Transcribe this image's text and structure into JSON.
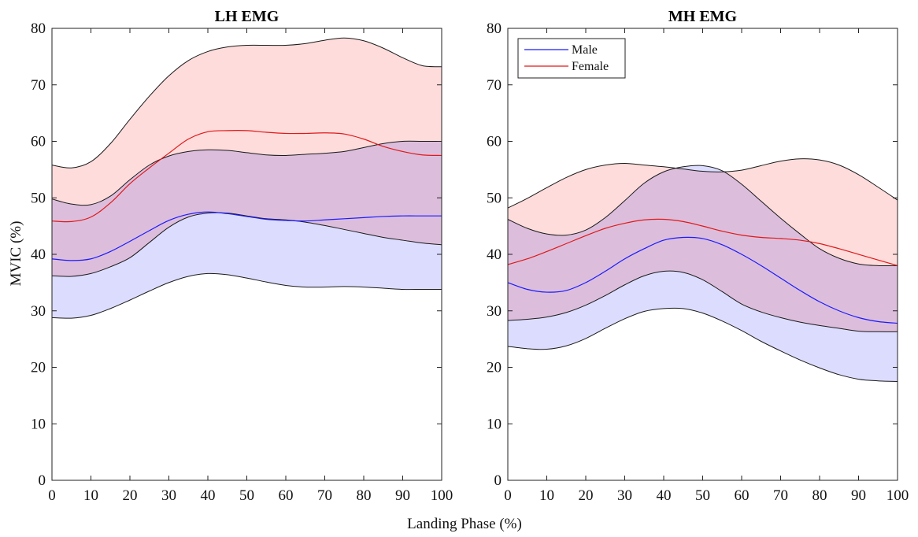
{
  "figure": {
    "xlabel": "Landing Phase (%)",
    "ylabel": "MVIC (%)"
  },
  "chart_data": [
    {
      "type": "area",
      "title": "LH EMG",
      "xlabel": "Landing Phase (%)",
      "ylabel": "MVIC (%)",
      "xlim": [
        0,
        100
      ],
      "ylim": [
        0,
        80
      ],
      "xticks": [
        0,
        10,
        20,
        30,
        40,
        50,
        60,
        70,
        80,
        90,
        100
      ],
      "yticks": [
        0,
        10,
        20,
        30,
        40,
        50,
        60,
        70,
        80
      ],
      "grid": false,
      "legend": null,
      "x": [
        0,
        5,
        10,
        15,
        20,
        25,
        30,
        35,
        40,
        45,
        50,
        55,
        60,
        65,
        70,
        75,
        80,
        85,
        90,
        95,
        100
      ],
      "series": [
        {
          "name": "Male",
          "color": "#1a1aff",
          "fill": "#dcdcff",
          "mean": [
            39.2,
            38.9,
            39.2,
            40.5,
            42.3,
            44.2,
            46.0,
            47.1,
            47.5,
            47.2,
            46.7,
            46.2,
            46.0,
            45.9,
            46.1,
            46.3,
            46.5,
            46.7,
            46.8,
            46.8,
            46.8
          ],
          "upper": [
            49.8,
            48.9,
            48.8,
            50.3,
            53.2,
            55.8,
            57.4,
            58.2,
            58.5,
            58.4,
            58.0,
            57.6,
            57.5,
            57.7,
            57.9,
            58.2,
            58.9,
            59.6,
            60.0,
            60.0,
            60.0
          ],
          "lower": [
            28.8,
            28.7,
            29.2,
            30.4,
            31.9,
            33.5,
            35.0,
            36.1,
            36.6,
            36.4,
            35.8,
            35.1,
            34.5,
            34.2,
            34.2,
            34.3,
            34.2,
            34.0,
            33.8,
            33.8,
            33.8
          ]
        },
        {
          "name": "Female",
          "color": "#e01818",
          "fill": "#ffdcdc",
          "mean": [
            45.9,
            45.8,
            46.6,
            49.1,
            52.5,
            55.3,
            57.9,
            60.4,
            61.7,
            61.9,
            61.9,
            61.6,
            61.4,
            61.4,
            61.5,
            61.3,
            60.4,
            59.1,
            58.2,
            57.6,
            57.5
          ],
          "upper": [
            55.8,
            55.3,
            56.4,
            59.6,
            63.9,
            68.0,
            71.6,
            74.3,
            75.9,
            76.7,
            77.0,
            77.0,
            77.0,
            77.3,
            77.9,
            78.3,
            77.8,
            76.5,
            74.8,
            73.4,
            73.2
          ],
          "lower": [
            36.2,
            36.1,
            36.6,
            37.8,
            39.4,
            42.1,
            44.8,
            46.6,
            47.3,
            47.3,
            46.8,
            46.3,
            46.1,
            45.7,
            45.1,
            44.4,
            43.7,
            43.0,
            42.5,
            42.0,
            41.7
          ]
        }
      ]
    },
    {
      "type": "area",
      "title": "MH EMG",
      "xlabel": "Landing Phase (%)",
      "ylabel": "MVIC (%)",
      "xlim": [
        0,
        100
      ],
      "ylim": [
        0,
        80
      ],
      "xticks": [
        0,
        10,
        20,
        30,
        40,
        50,
        60,
        70,
        80,
        90,
        100
      ],
      "yticks": [
        0,
        10,
        20,
        30,
        40,
        50,
        60,
        70,
        80
      ],
      "grid": false,
      "legend": "top-left",
      "x": [
        0,
        5,
        10,
        15,
        20,
        25,
        30,
        35,
        40,
        45,
        50,
        55,
        60,
        65,
        70,
        75,
        80,
        85,
        90,
        95,
        100
      ],
      "series": [
        {
          "name": "Male",
          "color": "#1a1aff",
          "fill": "#dcdcff",
          "mean": [
            35.0,
            33.8,
            33.3,
            33.6,
            35.0,
            37.0,
            39.2,
            41.0,
            42.5,
            43.0,
            42.8,
            41.7,
            40.0,
            38.0,
            35.8,
            33.6,
            31.6,
            30.0,
            28.8,
            28.1,
            27.8
          ],
          "upper": [
            46.2,
            44.6,
            43.6,
            43.4,
            44.3,
            46.5,
            49.5,
            52.6,
            54.6,
            55.5,
            55.7,
            54.8,
            52.4,
            49.4,
            46.4,
            43.6,
            41.0,
            39.3,
            38.3,
            38.0,
            38.0
          ],
          "lower": [
            23.7,
            23.3,
            23.2,
            23.8,
            25.1,
            26.9,
            28.6,
            29.9,
            30.4,
            30.4,
            29.6,
            28.2,
            26.5,
            24.6,
            22.9,
            21.3,
            19.9,
            18.7,
            17.9,
            17.6,
            17.5
          ]
        },
        {
          "name": "Female",
          "color": "#e01818",
          "fill": "#ffdcdc",
          "mean": [
            38.2,
            39.2,
            40.5,
            41.9,
            43.3,
            44.6,
            45.5,
            46.1,
            46.2,
            45.8,
            45.0,
            44.1,
            43.4,
            43.0,
            42.8,
            42.5,
            41.9,
            41.0,
            40.0,
            39.0,
            38.0
          ],
          "upper": [
            48.2,
            49.9,
            51.8,
            53.6,
            55.0,
            55.8,
            56.1,
            55.8,
            55.5,
            55.1,
            54.7,
            54.6,
            54.9,
            55.7,
            56.5,
            56.9,
            56.7,
            55.8,
            54.1,
            51.9,
            49.6
          ],
          "lower": [
            28.3,
            28.5,
            28.9,
            29.7,
            31.0,
            32.7,
            34.6,
            36.2,
            37.0,
            36.8,
            35.5,
            33.4,
            31.2,
            29.8,
            28.8,
            28.0,
            27.4,
            26.9,
            26.4,
            26.3,
            26.3
          ]
        }
      ]
    }
  ]
}
